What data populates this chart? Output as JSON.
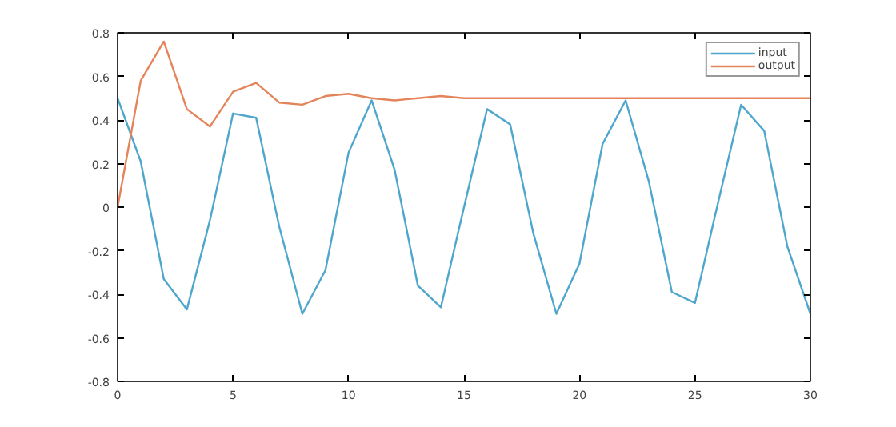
{
  "chart_data": {
    "type": "line",
    "x": [
      0,
      1,
      2,
      3,
      4,
      5,
      6,
      7,
      8,
      9,
      10,
      11,
      12,
      13,
      14,
      15,
      16,
      17,
      18,
      19,
      20,
      21,
      22,
      23,
      24,
      25,
      26,
      27,
      28,
      29,
      30
    ],
    "series": [
      {
        "name": "input",
        "color": "#4ea6cc",
        "values": [
          0.5,
          0.21,
          -0.33,
          -0.47,
          -0.06,
          0.43,
          0.41,
          -0.09,
          -0.49,
          -0.29,
          0.25,
          0.49,
          0.17,
          -0.36,
          -0.46,
          0.0,
          0.45,
          0.38,
          -0.12,
          -0.49,
          -0.26,
          0.29,
          0.49,
          0.12,
          -0.39,
          -0.44,
          0.02,
          0.47,
          0.35,
          -0.18,
          -0.49
        ]
      },
      {
        "name": "output",
        "color": "#e4845a",
        "values": [
          0.0,
          0.58,
          0.76,
          0.45,
          0.37,
          0.53,
          0.57,
          0.48,
          0.47,
          0.51,
          0.52,
          0.5,
          0.49,
          0.5,
          0.51,
          0.5,
          0.5,
          0.5,
          0.5,
          0.5,
          0.5,
          0.5,
          0.5,
          0.5,
          0.5,
          0.5,
          0.5,
          0.5,
          0.5,
          0.5,
          0.5
        ]
      }
    ],
    "xlim": [
      0,
      30
    ],
    "xticks": [
      0,
      5,
      10,
      15,
      20,
      25,
      30
    ],
    "ylim": [
      -0.8,
      0.8
    ],
    "yticks": [
      -0.8,
      -0.6,
      -0.4,
      -0.2,
      0,
      0.2,
      0.4,
      0.6,
      0.8
    ],
    "grid": false,
    "legend": "top right",
    "marker": "none",
    "line_style": "solid"
  }
}
